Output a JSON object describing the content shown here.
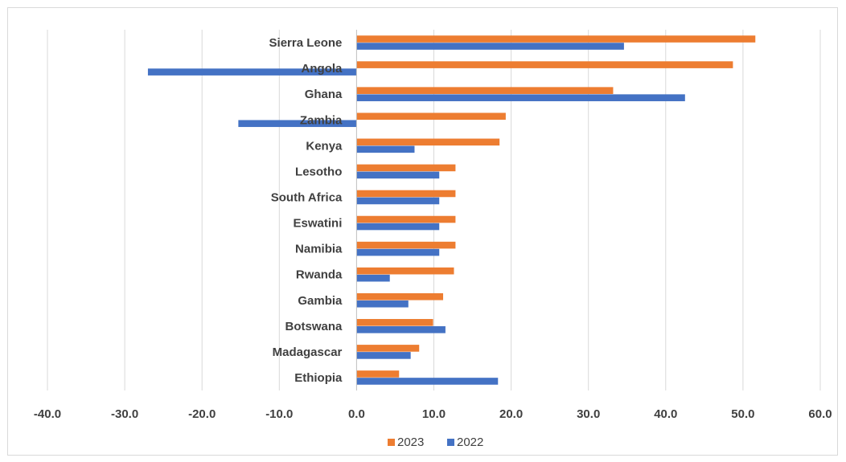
{
  "chart_data": {
    "type": "bar",
    "orientation": "horizontal",
    "categories": [
      "Sierra Leone",
      "Angola",
      "Ghana",
      "Zambia",
      "Kenya",
      "Lesotho",
      "South Africa",
      "Eswatini",
      "Namibia",
      "Rwanda",
      "Gambia",
      "Botswana",
      "Madagascar",
      "Ethiopia"
    ],
    "series": [
      {
        "name": "2023",
        "color": "#ed7d31",
        "values": [
          51.6,
          48.7,
          33.2,
          19.3,
          18.5,
          12.8,
          12.8,
          12.8,
          12.8,
          12.6,
          11.2,
          9.9,
          8.1,
          5.5
        ]
      },
      {
        "name": "2022",
        "color": "#4472c4",
        "values": [
          34.6,
          -27.0,
          42.5,
          -15.3,
          7.5,
          10.7,
          10.7,
          10.7,
          10.7,
          4.3,
          6.7,
          11.5,
          7.0,
          18.3
        ]
      }
    ],
    "xlim": [
      -40,
      60
    ],
    "xticks": [
      "-40.0",
      "-30.0",
      "-20.0",
      "-10.0",
      "0.0",
      "10.0",
      "20.0",
      "30.0",
      "40.0",
      "50.0",
      "60.0"
    ],
    "tick_values": [
      -40,
      -30,
      -20,
      -10,
      0,
      10,
      20,
      30,
      40,
      50,
      60
    ],
    "grid": "vertical",
    "legend": {
      "position": "bottom",
      "items": [
        "2023",
        "2022"
      ]
    }
  }
}
